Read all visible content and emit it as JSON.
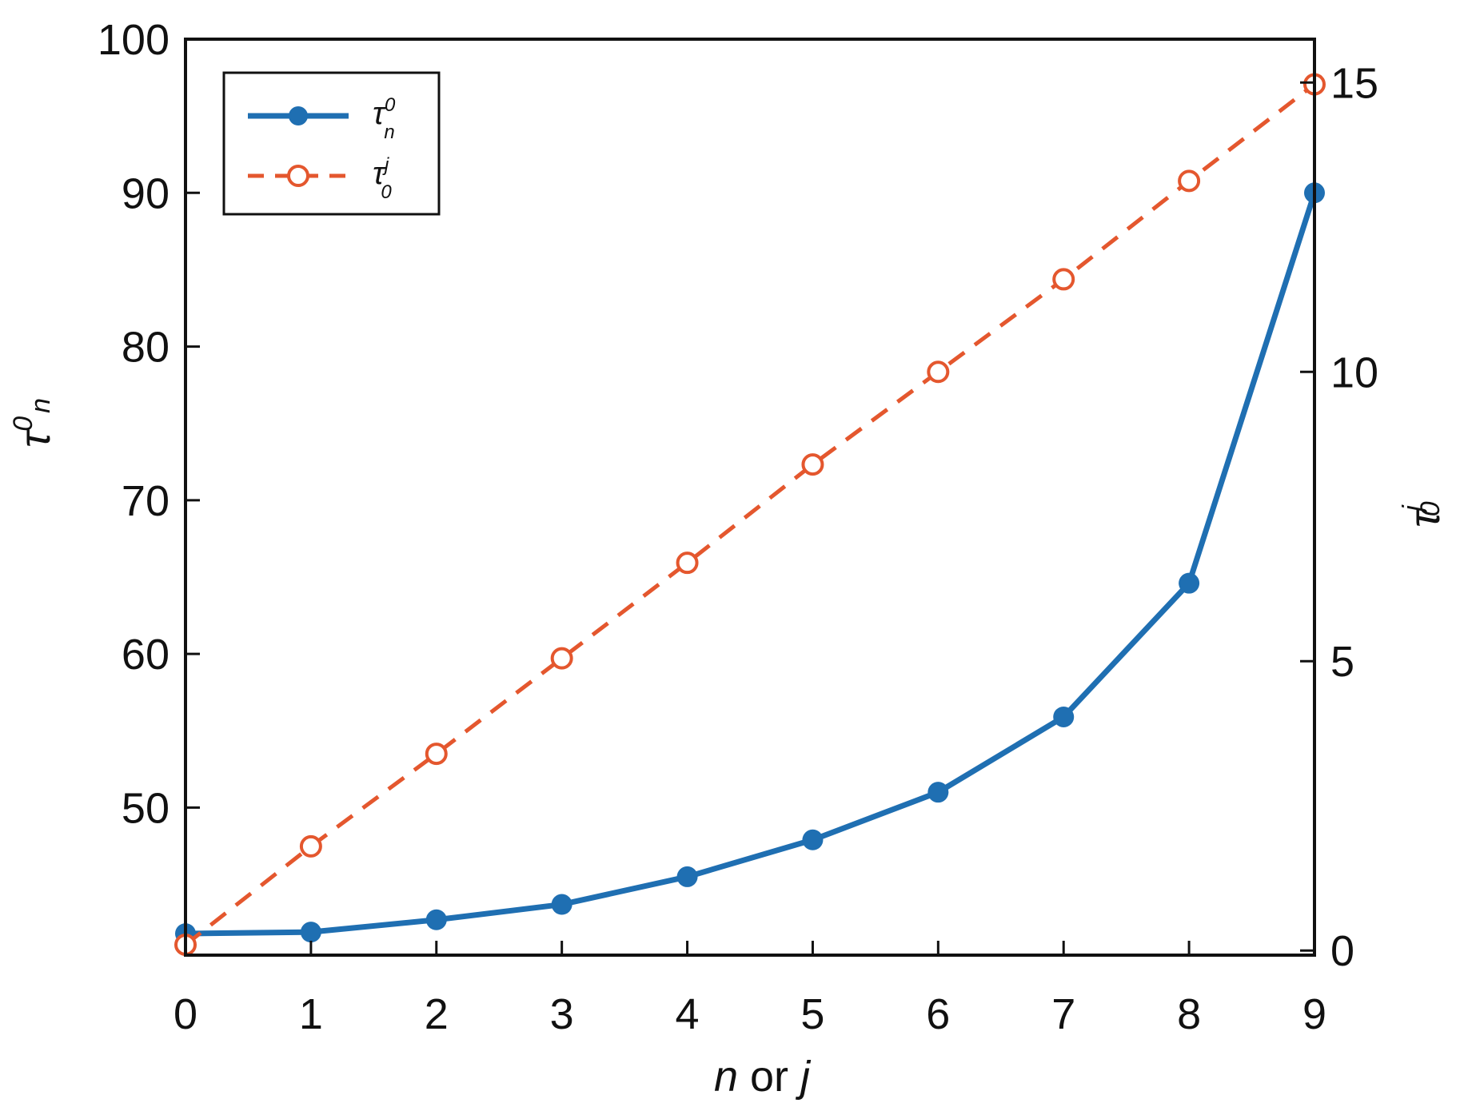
{
  "chart_data": {
    "type": "line",
    "title": "",
    "xlabel": {
      "n": "n",
      "or": " or ",
      "j": "j"
    },
    "ylabel_left": {
      "base": "τ",
      "sup": "0",
      "sub": "n"
    },
    "ylabel_right": {
      "base": "τ",
      "sup": "j",
      "sub": "0"
    },
    "x": [
      0,
      1,
      2,
      3,
      4,
      5,
      6,
      7,
      8,
      9
    ],
    "xticks": [
      "0",
      "1",
      "2",
      "3",
      "4",
      "5",
      "6",
      "7",
      "8",
      "9"
    ],
    "xlim": [
      0,
      9
    ],
    "ylim_left": [
      40.4,
      100
    ],
    "yticks_left": [
      50,
      60,
      70,
      80,
      90,
      100
    ],
    "ylim_right": [
      -0.08,
      15.75
    ],
    "yticks_right": [
      0,
      5,
      10,
      15
    ],
    "grid": false,
    "legend_position": "top-left",
    "series": [
      {
        "name": "τ_n^0",
        "legend": {
          "base": "τ",
          "sup": "0",
          "sub": "n"
        },
        "axis": "left",
        "color": "#1f6fb2",
        "style": "solid",
        "marker": "filled-circle",
        "values": [
          41.8,
          41.9,
          42.7,
          43.7,
          45.5,
          47.9,
          51.0,
          55.9,
          64.6,
          90.0
        ]
      },
      {
        "name": "τ_0^j",
        "legend": {
          "base": "τ",
          "sup": "j",
          "sub": "0"
        },
        "axis": "right",
        "color": "#e4572e",
        "style": "dashed",
        "marker": "open-circle",
        "values": [
          0.1,
          1.8,
          3.4,
          5.05,
          6.7,
          8.4,
          10.0,
          11.6,
          13.3,
          14.97
        ]
      }
    ]
  }
}
